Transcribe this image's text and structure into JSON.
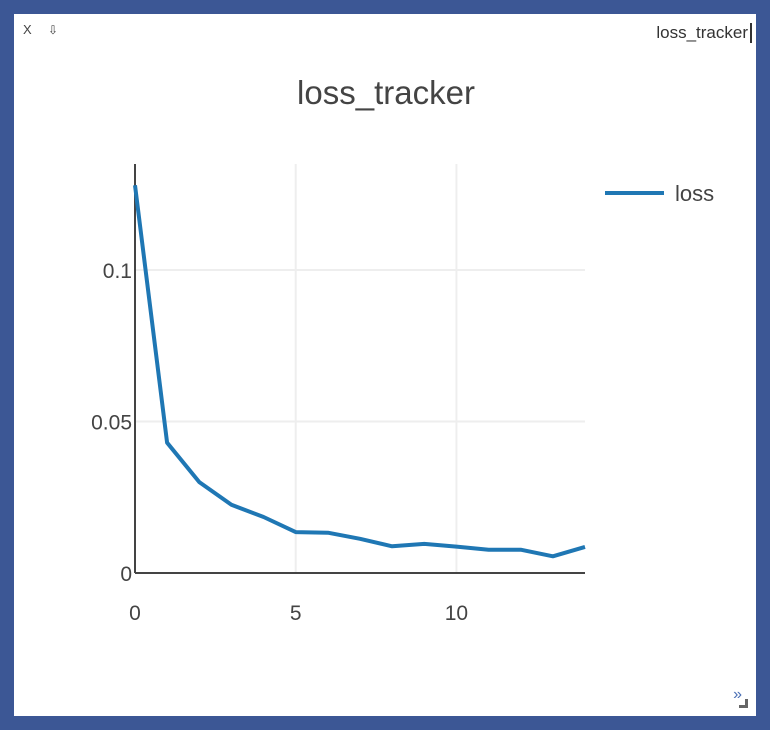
{
  "window": {
    "close_label": "X",
    "pin_label": "⇩",
    "title": "loss_tracker",
    "resize_label": "»"
  },
  "chart_data": {
    "type": "line",
    "title": "loss_tracker",
    "xlabel": "",
    "ylabel": "",
    "xlim": [
      0,
      14
    ],
    "ylim": [
      0,
      0.135
    ],
    "x_ticks": [
      0,
      5,
      10
    ],
    "x_tick_labels": [
      "0",
      "5",
      "10"
    ],
    "y_ticks": [
      0,
      0.05,
      0.1
    ],
    "y_tick_labels": [
      "0",
      "0.05",
      "0.1"
    ],
    "grid": true,
    "legend_position": "top-right",
    "series": [
      {
        "name": "loss",
        "color": "#1f77b4",
        "x": [
          0,
          1,
          2,
          3,
          4,
          5,
          6,
          7,
          8,
          9,
          10,
          11,
          12,
          13,
          14
        ],
        "y": [
          0.128,
          0.043,
          0.03,
          0.0225,
          0.0185,
          0.0135,
          0.0133,
          0.0113,
          0.0088,
          0.0096,
          0.0087,
          0.0077,
          0.0077,
          0.0055,
          0.0086
        ]
      }
    ]
  }
}
